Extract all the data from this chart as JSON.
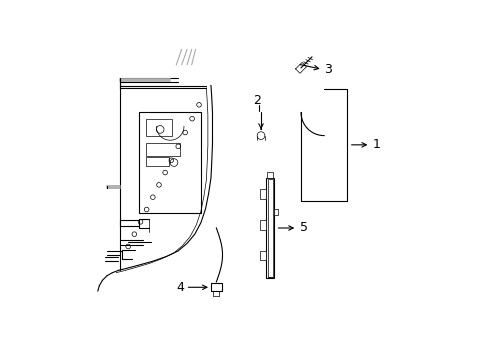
{
  "background_color": "#ffffff",
  "line_color": "#000000",
  "font_size": 9,
  "fig_width": 4.89,
  "fig_height": 3.6,
  "dpi": 100,
  "gray_color": "#aaaaaa"
}
